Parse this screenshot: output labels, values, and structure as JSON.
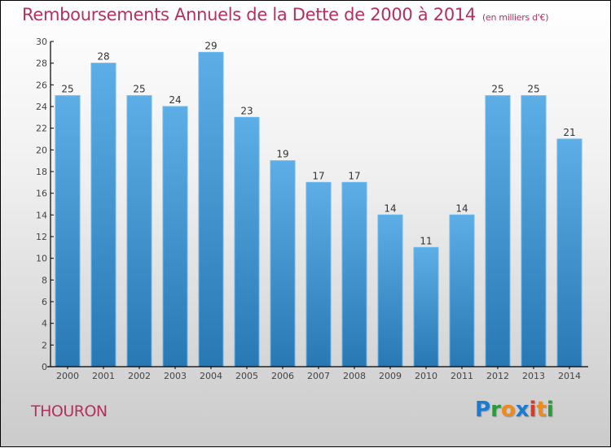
{
  "header": {
    "title": "Remboursements Annuels de la Dette de 2000 à 2014",
    "subtitle": "(en milliers d'€)"
  },
  "commune": "THOURON",
  "logo": {
    "letters": [
      {
        "char": "P",
        "color": "#1a7bd0"
      },
      {
        "char": "r",
        "color": "#2a9a3a"
      },
      {
        "char": "o",
        "color": "#f08a1c"
      },
      {
        "char": "x",
        "color": "#1a7bd0"
      },
      {
        "char": "i",
        "color": "#d63a2a"
      },
      {
        "char": "t",
        "color": "#f08a1c"
      },
      {
        "char": "i",
        "color": "#2a9a3a"
      }
    ]
  },
  "colors": {
    "bar_top": "#5dade6",
    "bar_bottom": "#2878b4",
    "title": "#b5305f",
    "axis": "#000000",
    "tick_text": "#444444"
  },
  "chart_data": {
    "type": "bar",
    "title": "Remboursements Annuels de la Dette de 2000 à 2014 (en milliers d'€)",
    "xlabel": "",
    "ylabel": "",
    "categories": [
      "2000",
      "2001",
      "2002",
      "2003",
      "2004",
      "2005",
      "2006",
      "2007",
      "2008",
      "2009",
      "2010",
      "2011",
      "2012",
      "2013",
      "2014"
    ],
    "values": [
      25,
      28,
      25,
      24,
      29,
      23,
      19,
      17,
      17,
      14,
      11,
      14,
      25,
      25,
      21
    ],
    "ylim": [
      0,
      30
    ],
    "yticks": [
      0,
      2,
      4,
      6,
      8,
      10,
      12,
      14,
      16,
      18,
      20,
      22,
      24,
      26,
      28,
      30
    ],
    "grid": false,
    "legend": "none",
    "data_labels": true
  }
}
